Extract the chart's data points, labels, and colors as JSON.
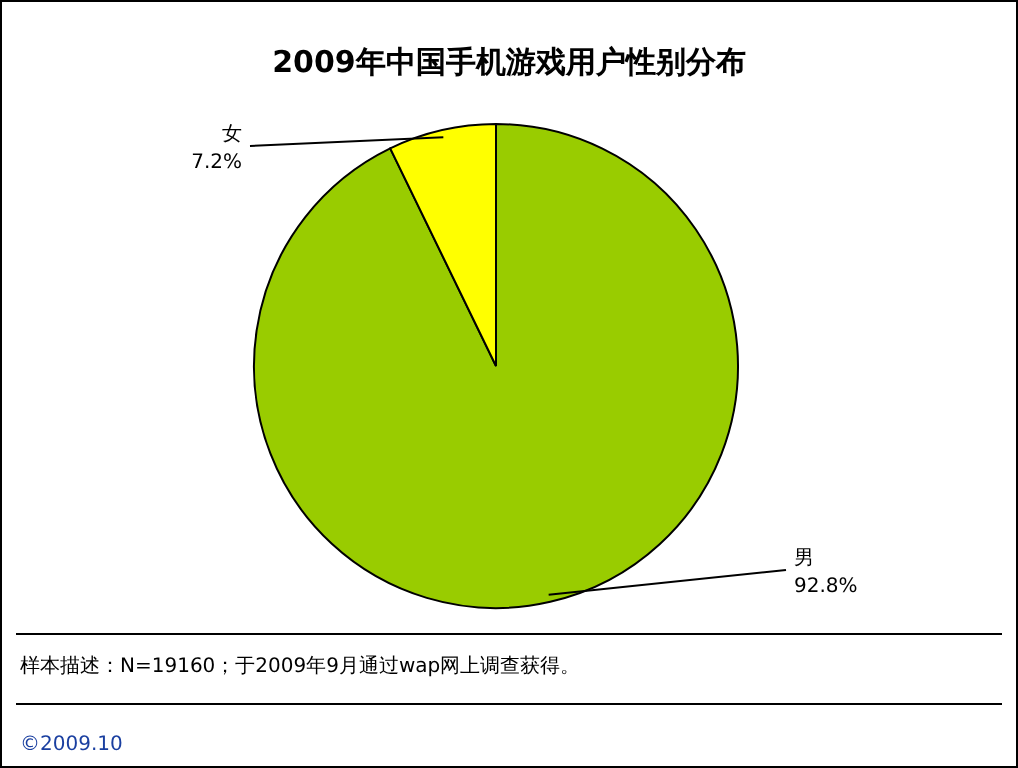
{
  "chart_data": {
    "type": "pie",
    "title": "2009年中国手机游戏用户性别分布",
    "categories": [
      "男",
      "女"
    ],
    "values": [
      92.8,
      7.2
    ],
    "value_labels": [
      "92.8%",
      "7.2%"
    ],
    "colors": [
      "#99cc00",
      "#ffff00"
    ],
    "annotations": [
      "样本描述：N=19160；于2009年9月通过wap网上调查获得。",
      "©2009.10"
    ]
  }
}
